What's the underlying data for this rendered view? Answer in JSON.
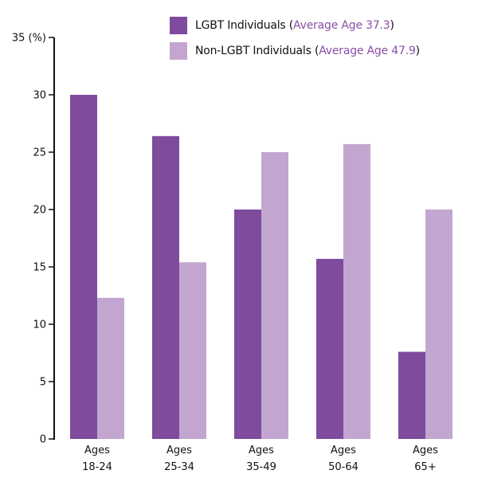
{
  "legend": {
    "items": [
      {
        "name": "LGBT Individuals",
        "open": " (",
        "avg": "Average Age 37.3",
        "close": ")"
      },
      {
        "name": "Non-LGBT Individuals",
        "open": " (",
        "avg": "Average Age 47.9",
        "close": ")"
      }
    ]
  },
  "colors": {
    "lgbt": "#7e4b9d",
    "non_lgbt": "#c2a6d0",
    "avg_text": "#8a4fa6",
    "axis": "#111111"
  },
  "chart_data": {
    "type": "bar",
    "categories": [
      [
        "Ages",
        "18-24"
      ],
      [
        "Ages",
        "25-34"
      ],
      [
        "Ages",
        "35-49"
      ],
      [
        "Ages",
        "50-64"
      ],
      [
        "Ages",
        "65+"
      ]
    ],
    "series": [
      {
        "name": "LGBT Individuals",
        "values": [
          30,
          26.4,
          20,
          15.7,
          7.6
        ]
      },
      {
        "name": "Non-LGBT Individuals",
        "values": [
          12.3,
          15.4,
          25,
          25.7,
          20
        ]
      }
    ],
    "ylim": [
      0,
      35
    ],
    "yticks": [
      "0",
      "5",
      "10",
      "15",
      "20",
      "25",
      "30",
      "35 (%)"
    ],
    "ytick_values": [
      0,
      5,
      10,
      15,
      20,
      25,
      30,
      35
    ],
    "grid": false,
    "legend_position": "top-right"
  }
}
